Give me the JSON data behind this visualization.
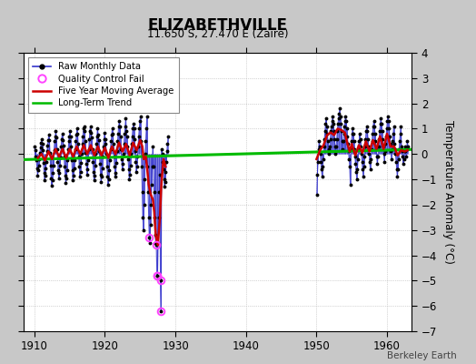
{
  "title": "ELIZABETHVILLE",
  "subtitle": "11.650 S, 27.470 E (Zaire)",
  "ylabel": "Temperature Anomaly (°C)",
  "watermark": "Berkeley Earth",
  "xlim": [
    1908.5,
    1963.5
  ],
  "ylim": [
    -7,
    4
  ],
  "xticks": [
    1910,
    1920,
    1930,
    1940,
    1950,
    1960
  ],
  "yticks": [
    -7,
    -6,
    -5,
    -4,
    -3,
    -2,
    -1,
    0,
    1,
    2,
    3,
    4
  ],
  "bg_color": "#c8c8c8",
  "plot_bg_color": "#ffffff",
  "raw_color": "#3333cc",
  "ma_color": "#cc0000",
  "trend_color": "#00bb00",
  "qc_color": "#ff44ff",
  "raw_monthly_early": [
    [
      1910.0417,
      0.3
    ],
    [
      1910.125,
      -0.1
    ],
    [
      1910.2083,
      0.15
    ],
    [
      1910.2917,
      -0.25
    ],
    [
      1910.375,
      -0.55
    ],
    [
      1910.4583,
      -0.85
    ],
    [
      1910.5417,
      -0.65
    ],
    [
      1910.625,
      -0.45
    ],
    [
      1910.7083,
      -0.2
    ],
    [
      1910.7917,
      0.05
    ],
    [
      1910.875,
      0.25
    ],
    [
      1910.9583,
      0.45
    ],
    [
      1911.0417,
      0.6
    ],
    [
      1911.125,
      0.4
    ],
    [
      1911.2083,
      0.15
    ],
    [
      1911.2917,
      -0.35
    ],
    [
      1911.375,
      -0.75
    ],
    [
      1911.4583,
      -1.05
    ],
    [
      1911.5417,
      -0.85
    ],
    [
      1911.625,
      -0.55
    ],
    [
      1911.7083,
      -0.3
    ],
    [
      1911.7917,
      0.1
    ],
    [
      1911.875,
      0.35
    ],
    [
      1911.9583,
      0.55
    ],
    [
      1912.0417,
      0.75
    ],
    [
      1912.125,
      0.55
    ],
    [
      1912.2083,
      0.05
    ],
    [
      1912.2917,
      -0.45
    ],
    [
      1912.375,
      -0.95
    ],
    [
      1912.4583,
      -1.25
    ],
    [
      1912.5417,
      -1.05
    ],
    [
      1912.625,
      -0.75
    ],
    [
      1912.7083,
      -0.45
    ],
    [
      1912.7917,
      0.15
    ],
    [
      1912.875,
      0.5
    ],
    [
      1912.9583,
      0.7
    ],
    [
      1913.0417,
      0.9
    ],
    [
      1913.125,
      0.65
    ],
    [
      1913.2083,
      0.2
    ],
    [
      1913.2917,
      -0.3
    ],
    [
      1913.375,
      -0.65
    ],
    [
      1913.4583,
      -0.95
    ],
    [
      1913.5417,
      -0.75
    ],
    [
      1913.625,
      -0.45
    ],
    [
      1913.7083,
      -0.15
    ],
    [
      1913.7917,
      0.3
    ],
    [
      1913.875,
      0.6
    ],
    [
      1913.9583,
      0.8
    ],
    [
      1914.0417,
      0.55
    ],
    [
      1914.125,
      0.35
    ],
    [
      1914.2083,
      -0.1
    ],
    [
      1914.2917,
      -0.5
    ],
    [
      1914.375,
      -0.85
    ],
    [
      1914.4583,
      -1.15
    ],
    [
      1914.5417,
      -0.95
    ],
    [
      1914.625,
      -0.65
    ],
    [
      1914.7083,
      -0.25
    ],
    [
      1914.7917,
      0.2
    ],
    [
      1914.875,
      0.5
    ],
    [
      1914.9583,
      0.7
    ],
    [
      1915.0417,
      0.9
    ],
    [
      1915.125,
      0.7
    ],
    [
      1915.2083,
      0.3
    ],
    [
      1915.2917,
      -0.25
    ],
    [
      1915.375,
      -0.65
    ],
    [
      1915.4583,
      -1.05
    ],
    [
      1915.5417,
      -0.85
    ],
    [
      1915.625,
      -0.55
    ],
    [
      1915.7083,
      -0.25
    ],
    [
      1915.7917,
      0.2
    ],
    [
      1915.875,
      0.5
    ],
    [
      1915.9583,
      0.75
    ],
    [
      1916.0417,
      1.0
    ],
    [
      1916.125,
      0.8
    ],
    [
      1916.2083,
      0.4
    ],
    [
      1916.2917,
      -0.1
    ],
    [
      1916.375,
      -0.5
    ],
    [
      1916.4583,
      -0.9
    ],
    [
      1916.5417,
      -0.7
    ],
    [
      1916.625,
      -0.35
    ],
    [
      1916.7083,
      0.0
    ],
    [
      1916.7917,
      0.4
    ],
    [
      1916.875,
      0.7
    ],
    [
      1916.9583,
      1.0
    ],
    [
      1917.0417,
      1.1
    ],
    [
      1917.125,
      0.9
    ],
    [
      1917.2083,
      0.5
    ],
    [
      1917.2917,
      0.05
    ],
    [
      1917.375,
      -0.4
    ],
    [
      1917.4583,
      -0.8
    ],
    [
      1917.5417,
      -0.6
    ],
    [
      1917.625,
      -0.25
    ],
    [
      1917.7083,
      0.2
    ],
    [
      1917.7917,
      0.6
    ],
    [
      1917.875,
      0.9
    ],
    [
      1917.9583,
      1.1
    ],
    [
      1918.0417,
      0.85
    ],
    [
      1918.125,
      0.65
    ],
    [
      1918.2083,
      0.2
    ],
    [
      1918.2917,
      -0.3
    ],
    [
      1918.375,
      -0.7
    ],
    [
      1918.4583,
      -1.05
    ],
    [
      1918.5417,
      -0.85
    ],
    [
      1918.625,
      -0.45
    ],
    [
      1918.7083,
      0.0
    ],
    [
      1918.7917,
      0.4
    ],
    [
      1918.875,
      0.7
    ],
    [
      1918.9583,
      1.0
    ],
    [
      1919.0417,
      0.75
    ],
    [
      1919.125,
      0.55
    ],
    [
      1919.2083,
      0.1
    ],
    [
      1919.2917,
      -0.4
    ],
    [
      1919.375,
      -0.8
    ],
    [
      1919.4583,
      -1.1
    ],
    [
      1919.5417,
      -0.9
    ],
    [
      1919.625,
      -0.55
    ],
    [
      1919.7083,
      -0.1
    ],
    [
      1919.7917,
      0.3
    ],
    [
      1919.875,
      0.6
    ],
    [
      1919.9583,
      0.85
    ],
    [
      1920.0417,
      0.6
    ],
    [
      1920.125,
      0.4
    ],
    [
      1920.2083,
      0.0
    ],
    [
      1920.2917,
      -0.5
    ],
    [
      1920.375,
      -0.9
    ],
    [
      1920.4583,
      -1.2
    ],
    [
      1920.5417,
      -1.0
    ],
    [
      1920.625,
      -0.65
    ],
    [
      1920.7083,
      -0.25
    ],
    [
      1920.7917,
      0.2
    ],
    [
      1920.875,
      0.5
    ],
    [
      1920.9583,
      0.75
    ],
    [
      1921.0417,
      1.0
    ],
    [
      1921.125,
      0.8
    ],
    [
      1921.2083,
      0.4
    ],
    [
      1921.2917,
      -0.1
    ],
    [
      1921.375,
      -0.5
    ],
    [
      1921.4583,
      -0.9
    ],
    [
      1921.5417,
      -0.75
    ],
    [
      1921.625,
      -0.35
    ],
    [
      1921.7083,
      0.1
    ],
    [
      1921.7917,
      0.5
    ],
    [
      1921.875,
      0.8
    ],
    [
      1921.9583,
      1.1
    ],
    [
      1922.0417,
      1.3
    ],
    [
      1922.125,
      1.1
    ],
    [
      1922.2083,
      0.7
    ],
    [
      1922.2917,
      0.2
    ],
    [
      1922.375,
      -0.2
    ],
    [
      1922.4583,
      -0.6
    ],
    [
      1922.5417,
      -0.4
    ],
    [
      1922.625,
      0.0
    ],
    [
      1922.7083,
      0.4
    ],
    [
      1922.7917,
      0.8
    ],
    [
      1922.875,
      1.1
    ],
    [
      1922.9583,
      1.4
    ],
    [
      1923.0417,
      0.9
    ],
    [
      1923.125,
      0.7
    ],
    [
      1923.2083,
      0.3
    ],
    [
      1923.2917,
      -0.2
    ],
    [
      1923.375,
      -0.6
    ],
    [
      1923.4583,
      -1.0
    ],
    [
      1923.5417,
      -0.8
    ],
    [
      1923.625,
      -0.45
    ],
    [
      1923.7083,
      0.0
    ],
    [
      1923.7917,
      0.4
    ],
    [
      1923.875,
      0.7
    ],
    [
      1923.9583,
      1.0
    ],
    [
      1924.0417,
      1.2
    ],
    [
      1924.125,
      1.0
    ],
    [
      1924.2083,
      0.6
    ],
    [
      1924.2917,
      0.1
    ],
    [
      1924.375,
      -0.3
    ],
    [
      1924.4583,
      -0.7
    ],
    [
      1924.5417,
      -0.5
    ],
    [
      1924.625,
      -0.1
    ],
    [
      1924.7083,
      0.3
    ],
    [
      1924.7917,
      0.7
    ],
    [
      1924.875,
      1.0
    ],
    [
      1924.9583,
      1.3
    ],
    [
      1925.0417,
      1.5
    ],
    [
      1925.125,
      0.5
    ],
    [
      1925.2083,
      -0.5
    ],
    [
      1925.2917,
      -1.5
    ],
    [
      1925.375,
      -2.5
    ],
    [
      1925.4583,
      -3.0
    ],
    [
      1925.5417,
      -2.0
    ],
    [
      1925.625,
      -1.0
    ],
    [
      1925.7083,
      0.0
    ],
    [
      1925.7917,
      0.5
    ],
    [
      1925.875,
      1.0
    ],
    [
      1925.9583,
      1.5
    ],
    [
      1926.0417,
      -0.5
    ],
    [
      1926.125,
      -1.5
    ],
    [
      1926.2083,
      -2.5
    ],
    [
      1926.2917,
      -3.3
    ],
    [
      1926.375,
      -3.5
    ],
    [
      1926.4583,
      -2.8
    ],
    [
      1926.5417,
      -2.0
    ],
    [
      1926.625,
      -1.2
    ],
    [
      1926.7083,
      -0.5
    ],
    [
      1926.7917,
      0.3
    ],
    [
      1926.875,
      -0.5
    ],
    [
      1926.9583,
      -1.5
    ],
    [
      1927.0417,
      -2.5
    ],
    [
      1927.125,
      -3.2
    ],
    [
      1927.2083,
      -3.5
    ],
    [
      1927.2917,
      -3.6
    ],
    [
      1927.375,
      -4.8
    ],
    [
      1927.4583,
      -4.8
    ],
    [
      1927.5417,
      -3.5
    ],
    [
      1927.625,
      -2.5
    ],
    [
      1927.7083,
      -1.5
    ],
    [
      1927.7917,
      -0.8
    ],
    [
      1927.875,
      -5.0
    ],
    [
      1927.9583,
      -6.2
    ],
    [
      1928.0417,
      0.2
    ],
    [
      1928.125,
      0.0
    ],
    [
      1928.2083,
      -0.3
    ],
    [
      1928.2917,
      -0.6
    ],
    [
      1928.375,
      -1.0
    ],
    [
      1928.4583,
      -1.3
    ],
    [
      1928.5417,
      -1.1
    ],
    [
      1928.625,
      -0.7
    ],
    [
      1928.7083,
      -0.3
    ],
    [
      1928.7917,
      0.1
    ],
    [
      1928.875,
      0.4
    ],
    [
      1928.9583,
      0.7
    ]
  ],
  "raw_monthly_late": [
    [
      1950.0417,
      -1.6
    ],
    [
      1950.125,
      -0.8
    ],
    [
      1950.2083,
      -0.3
    ],
    [
      1950.2917,
      0.2
    ],
    [
      1950.375,
      0.5
    ],
    [
      1950.4583,
      0.3
    ],
    [
      1950.5417,
      0.0
    ],
    [
      1950.625,
      -0.3
    ],
    [
      1950.7083,
      -0.6
    ],
    [
      1950.7917,
      -0.9
    ],
    [
      1950.875,
      -0.5
    ],
    [
      1950.9583,
      -0.2
    ],
    [
      1951.0417,
      0.3
    ],
    [
      1951.125,
      0.6
    ],
    [
      1951.2083,
      0.9
    ],
    [
      1951.2917,
      1.2
    ],
    [
      1951.375,
      1.4
    ],
    [
      1951.4583,
      1.1
    ],
    [
      1951.5417,
      0.8
    ],
    [
      1951.625,
      0.5
    ],
    [
      1951.7083,
      0.2
    ],
    [
      1951.7917,
      0.0
    ],
    [
      1951.875,
      0.3
    ],
    [
      1951.9583,
      0.6
    ],
    [
      1952.0417,
      0.9
    ],
    [
      1952.125,
      1.1
    ],
    [
      1952.2083,
      1.3
    ],
    [
      1952.2917,
      1.5
    ],
    [
      1952.375,
      1.2
    ],
    [
      1952.4583,
      0.9
    ],
    [
      1952.5417,
      0.6
    ],
    [
      1952.625,
      0.3
    ],
    [
      1952.7083,
      0.0
    ],
    [
      1952.7917,
      0.3
    ],
    [
      1952.875,
      0.6
    ],
    [
      1952.9583,
      0.9
    ],
    [
      1953.0417,
      1.2
    ],
    [
      1953.125,
      1.4
    ],
    [
      1953.2083,
      1.6
    ],
    [
      1953.2917,
      1.8
    ],
    [
      1953.375,
      1.5
    ],
    [
      1953.4583,
      1.2
    ],
    [
      1953.5417,
      0.9
    ],
    [
      1953.625,
      0.5
    ],
    [
      1953.7083,
      0.2
    ],
    [
      1953.7917,
      0.5
    ],
    [
      1953.875,
      0.8
    ],
    [
      1953.9583,
      1.1
    ],
    [
      1954.0417,
      1.3
    ],
    [
      1954.125,
      1.5
    ],
    [
      1954.2083,
      1.3
    ],
    [
      1954.2917,
      1.0
    ],
    [
      1954.375,
      0.7
    ],
    [
      1954.4583,
      0.4
    ],
    [
      1954.5417,
      0.1
    ],
    [
      1954.625,
      -0.2
    ],
    [
      1954.7083,
      -0.5
    ],
    [
      1954.7917,
      -1.2
    ],
    [
      1954.875,
      0.2
    ],
    [
      1954.9583,
      0.5
    ],
    [
      1955.0417,
      0.8
    ],
    [
      1955.125,
      1.0
    ],
    [
      1955.2083,
      0.8
    ],
    [
      1955.2917,
      0.5
    ],
    [
      1955.375,
      0.2
    ],
    [
      1955.4583,
      -0.1
    ],
    [
      1955.5417,
      -0.4
    ],
    [
      1955.625,
      -0.7
    ],
    [
      1955.7083,
      -1.0
    ],
    [
      1955.7917,
      -0.6
    ],
    [
      1955.875,
      -0.2
    ],
    [
      1955.9583,
      0.2
    ],
    [
      1956.0417,
      0.5
    ],
    [
      1956.125,
      0.8
    ],
    [
      1956.2083,
      0.6
    ],
    [
      1956.2917,
      0.3
    ],
    [
      1956.375,
      0.0
    ],
    [
      1956.4583,
      -0.3
    ],
    [
      1956.5417,
      -0.6
    ],
    [
      1956.625,
      -0.9
    ],
    [
      1956.7083,
      -0.5
    ],
    [
      1956.7917,
      -0.1
    ],
    [
      1956.875,
      0.3
    ],
    [
      1956.9583,
      0.6
    ],
    [
      1957.0417,
      0.9
    ],
    [
      1957.125,
      1.1
    ],
    [
      1957.2083,
      0.9
    ],
    [
      1957.2917,
      0.6
    ],
    [
      1957.375,
      0.3
    ],
    [
      1957.4583,
      0.0
    ],
    [
      1957.5417,
      -0.3
    ],
    [
      1957.625,
      -0.6
    ],
    [
      1957.7083,
      -0.2
    ],
    [
      1957.7917,
      0.2
    ],
    [
      1957.875,
      0.5
    ],
    [
      1957.9583,
      0.8
    ],
    [
      1958.0417,
      1.1
    ],
    [
      1958.125,
      1.3
    ],
    [
      1958.2083,
      1.1
    ],
    [
      1958.2917,
      0.8
    ],
    [
      1958.375,
      0.5
    ],
    [
      1958.4583,
      0.2
    ],
    [
      1958.5417,
      -0.1
    ],
    [
      1958.625,
      -0.4
    ],
    [
      1958.7083,
      -0.1
    ],
    [
      1958.7917,
      0.3
    ],
    [
      1958.875,
      0.6
    ],
    [
      1958.9583,
      0.9
    ],
    [
      1959.0417,
      1.2
    ],
    [
      1959.125,
      1.4
    ],
    [
      1959.2083,
      1.2
    ],
    [
      1959.2917,
      0.9
    ],
    [
      1959.375,
      0.6
    ],
    [
      1959.4583,
      0.3
    ],
    [
      1959.5417,
      0.0
    ],
    [
      1959.625,
      -0.3
    ],
    [
      1959.7083,
      0.1
    ],
    [
      1959.7917,
      0.4
    ],
    [
      1959.875,
      0.7
    ],
    [
      1959.9583,
      1.0
    ],
    [
      1960.0417,
      1.3
    ],
    [
      1960.125,
      1.5
    ],
    [
      1960.2083,
      1.3
    ],
    [
      1960.2917,
      1.0
    ],
    [
      1960.375,
      0.7
    ],
    [
      1960.4583,
      0.4
    ],
    [
      1960.5417,
      0.1
    ],
    [
      1960.625,
      -0.2
    ],
    [
      1960.7083,
      0.2
    ],
    [
      1960.7917,
      0.5
    ],
    [
      1960.875,
      0.8
    ],
    [
      1960.9583,
      1.1
    ],
    [
      1961.0417,
      0.4
    ],
    [
      1961.125,
      0.2
    ],
    [
      1961.2083,
      0.0
    ],
    [
      1961.2917,
      -0.3
    ],
    [
      1961.375,
      -0.6
    ],
    [
      1961.4583,
      -0.9
    ],
    [
      1961.5417,
      -0.6
    ],
    [
      1961.625,
      -0.2
    ],
    [
      1961.7083,
      0.2
    ],
    [
      1961.7917,
      0.5
    ],
    [
      1961.875,
      0.8
    ],
    [
      1961.9583,
      1.1
    ],
    [
      1962.0417,
      0.3
    ],
    [
      1962.125,
      0.1
    ],
    [
      1962.2083,
      -0.1
    ],
    [
      1962.2917,
      -0.4
    ],
    [
      1962.375,
      -0.2
    ],
    [
      1962.4583,
      0.1
    ],
    [
      1962.5417,
      0.3
    ],
    [
      1962.625,
      0.1
    ],
    [
      1962.7083,
      -0.1
    ],
    [
      1962.7917,
      0.2
    ],
    [
      1962.875,
      0.5
    ],
    [
      1962.9583,
      0.3
    ]
  ],
  "qc_fail_x": [
    1926.2917,
    1927.2917,
    1927.375,
    1927.4583,
    1927.875,
    1927.9583
  ],
  "qc_fail_y": [
    -3.3,
    -3.6,
    -4.8,
    -4.8,
    -5.0,
    -6.2
  ],
  "moving_avg_early_x": [
    1910.5,
    1911.0,
    1911.5,
    1912.0,
    1912.5,
    1913.0,
    1913.5,
    1914.0,
    1914.5,
    1915.0,
    1915.5,
    1916.0,
    1916.5,
    1917.0,
    1917.5,
    1918.0,
    1918.5,
    1919.0,
    1919.5,
    1920.0,
    1920.5,
    1921.0,
    1921.5,
    1922.0,
    1922.5,
    1923.0,
    1923.5,
    1924.0,
    1924.5,
    1925.0,
    1925.3,
    1925.5,
    1925.8,
    1926.0,
    1926.2,
    1926.5,
    1926.8,
    1927.0,
    1927.2,
    1927.5,
    1927.8,
    1928.0,
    1928.3,
    1928.6
  ],
  "moving_avg_early_y": [
    -0.15,
    0.0,
    -0.25,
    0.1,
    -0.2,
    0.2,
    -0.1,
    0.2,
    -0.15,
    0.2,
    -0.1,
    0.3,
    0.0,
    0.35,
    0.0,
    0.35,
    -0.05,
    0.3,
    -0.05,
    0.25,
    -0.15,
    0.3,
    -0.0,
    0.45,
    0.1,
    0.4,
    -0.05,
    0.45,
    0.15,
    0.55,
    0.3,
    -0.2,
    -0.1,
    -0.6,
    -1.2,
    -1.6,
    -1.8,
    -2.3,
    -3.2,
    -3.6,
    -2.5,
    -1.2,
    -0.2,
    -0.5
  ],
  "moving_avg_late_x": [
    1950.0,
    1950.5,
    1951.0,
    1951.5,
    1952.0,
    1952.5,
    1953.0,
    1953.5,
    1954.0,
    1954.3,
    1954.7,
    1955.0,
    1955.5,
    1956.0,
    1956.5,
    1957.0,
    1957.5,
    1958.0,
    1958.5,
    1959.0,
    1959.5,
    1960.0,
    1960.5,
    1961.0,
    1961.5,
    1962.0,
    1962.5,
    1962.9
  ],
  "moving_avg_late_y": [
    -0.2,
    0.15,
    0.35,
    0.75,
    0.85,
    0.75,
    1.0,
    0.95,
    0.85,
    0.5,
    0.1,
    0.4,
    -0.05,
    0.35,
    0.05,
    0.5,
    0.1,
    0.55,
    0.2,
    0.7,
    0.2,
    0.8,
    0.3,
    0.3,
    -0.05,
    0.15,
    0.1,
    0.15
  ],
  "trend_x": [
    1908.5,
    1963.5
  ],
  "trend_y": [
    -0.22,
    0.18
  ]
}
